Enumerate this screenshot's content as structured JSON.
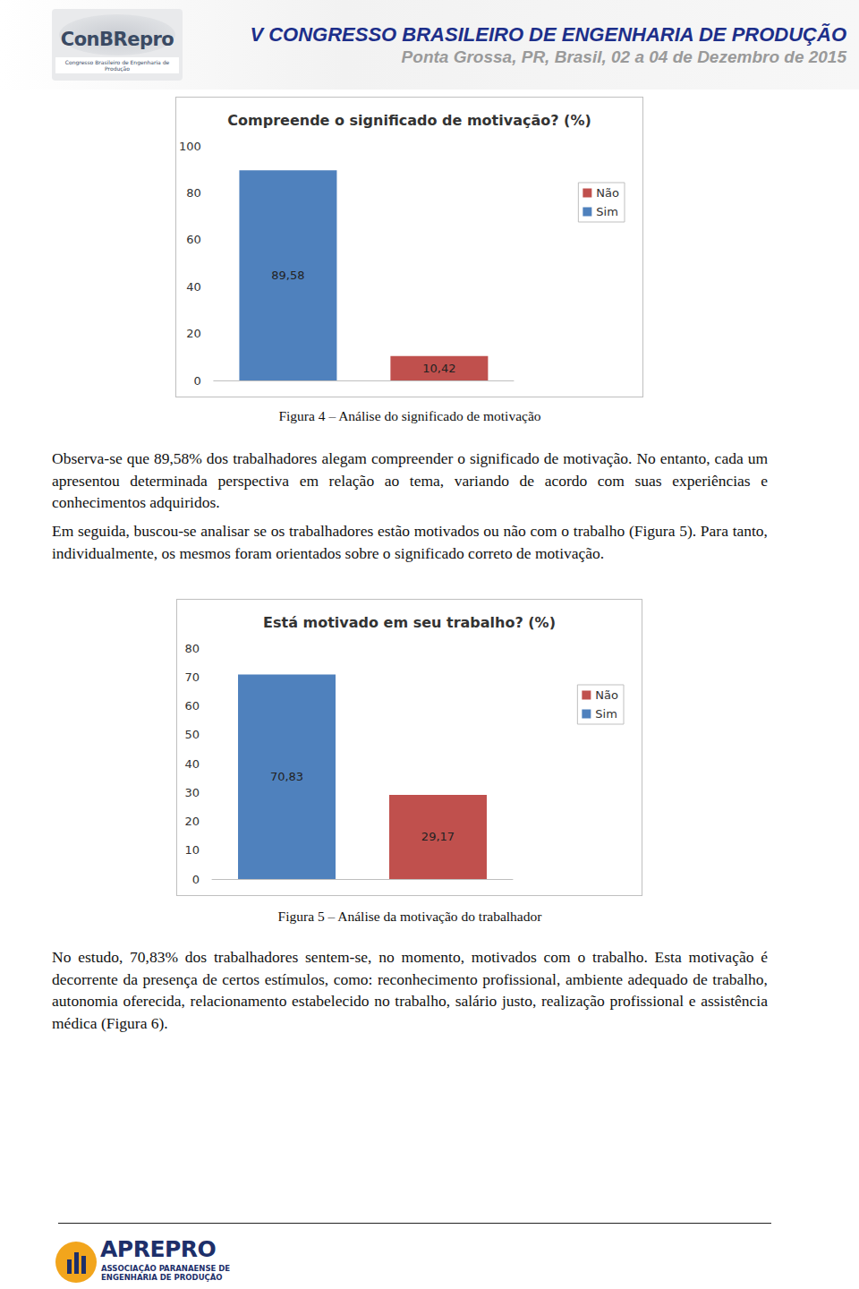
{
  "header": {
    "logo": "ConBRepro",
    "logo_caption": "Congresso Brasileiro de Engenharia de Produção",
    "title": "V CONGRESSO BRASILEIRO DE ENGENHARIA DE PRODUÇÃO",
    "subtitle": "Ponta Grossa, PR, Brasil, 02 a 04 de Dezembro de 2015"
  },
  "chart_data": [
    {
      "type": "bar",
      "title": "Compreende o significado de motivação? (%)",
      "categories": [
        null
      ],
      "series": [
        {
          "name": "Sim",
          "color": "#4f81bd",
          "values": [
            89.58
          ],
          "value_labels": [
            "89,58"
          ]
        },
        {
          "name": "Não",
          "color": "#c0504d",
          "values": [
            10.42
          ],
          "value_labels": [
            "10,42"
          ]
        }
      ],
      "ylim": [
        0,
        100
      ],
      "yticks": [
        0,
        20,
        40,
        60,
        80,
        100
      ],
      "grid": false,
      "legend": "right",
      "data_labels": true,
      "tick_labels": "y"
    },
    {
      "type": "bar",
      "title": "Está motivado em seu trabalho? (%)",
      "categories": [
        null
      ],
      "series": [
        {
          "name": "Sim",
          "color": "#4f81bd",
          "values": [
            70.83
          ],
          "value_labels": [
            "70,83"
          ]
        },
        {
          "name": "Não",
          "color": "#c0504d",
          "values": [
            29.17
          ],
          "value_labels": [
            "29,17"
          ]
        }
      ],
      "ylim": [
        0,
        80
      ],
      "yticks": [
        0,
        10,
        20,
        30,
        40,
        50,
        60,
        70,
        80
      ],
      "grid": false,
      "legend": "right",
      "data_labels": true,
      "tick_labels": "y"
    }
  ],
  "captions": [
    "Figura 4 – Análise do significado de motivação",
    "Figura 5 – Análise da motivação do trabalhador"
  ],
  "paragraphs": [
    "Observa-se que 89,58% dos trabalhadores alegam compreender o significado de motivação. No entanto, cada um apresentou determinada perspectiva em relação ao tema, variando de acordo com suas experiências e conhecimentos adquiridos.",
    "Em seguida, buscou-se analisar se os trabalhadores estão motivados ou não com o trabalho (Figura 5). Para tanto, individualmente, os mesmos foram orientados sobre o significado correto de motivação.",
    "No estudo, 70,83% dos trabalhadores sentem-se, no momento, motivados com o trabalho. Esta motivação é decorrente da presença de certos estímulos, como: reconhecimento profissional, ambiente adequado de trabalho, autonomia oferecida, relacionamento estabelecido no trabalho, salário justo, realização profissional e assistência médica (Figura 6)."
  ],
  "footer": {
    "logo": "APREPRO",
    "logo_caption": [
      "ASSOCIAÇÃO PARANAENSE DE",
      "ENGENHARIA DE PRODUÇÃO"
    ]
  }
}
